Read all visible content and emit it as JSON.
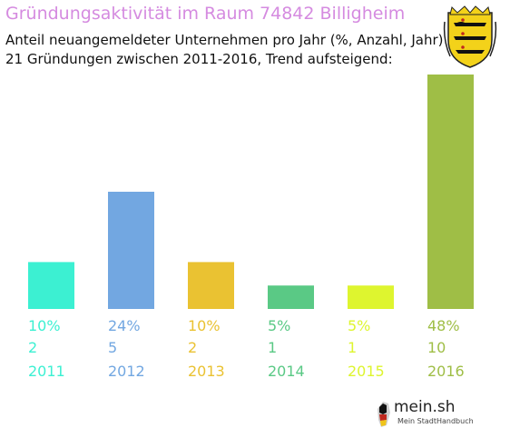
{
  "header": {
    "title": "Gründungsaktivität im Raum 74842 Billigheim",
    "subtitle_line1": "Anteil neuangemeldeter Unternehmen pro Jahr (%, Anzahl, Jahr)",
    "subtitle_line2": "21 Gründungen zwischen 2011-2016, Trend aufsteigend:"
  },
  "colors": {
    "title": "#d58be0"
  },
  "chart_data": {
    "type": "bar",
    "categories": [
      "2011",
      "2012",
      "2013",
      "2014",
      "2015",
      "2016"
    ],
    "percent_labels": [
      "10%",
      "24%",
      "10%",
      "5%",
      "5%",
      "48%"
    ],
    "count_labels": [
      "2",
      "5",
      "2",
      "1",
      "1",
      "10"
    ],
    "values": [
      2,
      5,
      2,
      1,
      1,
      10
    ],
    "colors": [
      "#3cf0d2",
      "#72a7e1",
      "#eac232",
      "#5ac985",
      "#def52f",
      "#9fbe46"
    ],
    "title": "Gründungsaktivität im Raum 74842 Billigheim",
    "ylim": [
      0,
      10
    ],
    "grid": false
  },
  "branding": {
    "name": "mein.sh",
    "tagline": "Mein StadtHandbuch"
  }
}
